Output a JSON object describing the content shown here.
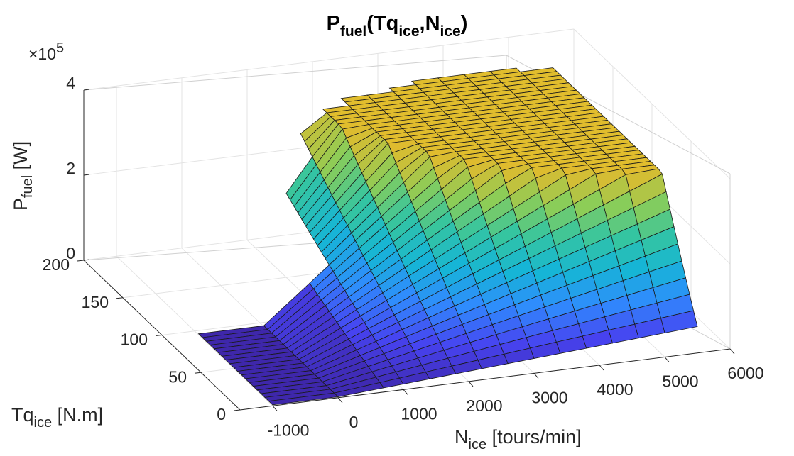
{
  "chart_data": {
    "type": "surface",
    "title": {
      "main": "P",
      "sub1": "fuel",
      "mid": "(Tq",
      "sub2": "ice",
      "mid2": ",N",
      "sub3": "ice",
      "end": ")"
    },
    "xlabel": {
      "main": "N",
      "sub": "ice",
      "rest": " [tours/min]"
    },
    "ylabel": {
      "main": "Tq",
      "sub": "ice",
      "rest": " [N.m]"
    },
    "zlabel": {
      "main": "P",
      "sub": "fuel",
      "rest": " [W]"
    },
    "z_exponent": {
      "base": "×10",
      "exp": "5"
    },
    "xlim": [
      -1500,
      6000
    ],
    "ylim": [
      0,
      200
    ],
    "zlim": [
      0,
      400000
    ],
    "x_ticks": [
      "-1000",
      "0",
      "1000",
      "2000",
      "3000",
      "4000",
      "5000",
      "6000"
    ],
    "y_ticks": [
      "0",
      "50",
      "100",
      "150",
      "200"
    ],
    "z_ticks": [
      "0",
      "2",
      "4"
    ],
    "colormap": [
      "#3e26a8",
      "#4743f0",
      "#2f8cfd",
      "#16b5d6",
      "#35c5a0",
      "#8bcd58",
      "#e0bb2e",
      "#f9fb14"
    ],
    "grid": true,
    "surface": {
      "speed_breakpoints_rpm": [
        -1000,
        0,
        700,
        1000,
        1400,
        1800,
        2200,
        2600,
        3000,
        3400,
        3800,
        4200,
        4600,
        5000,
        5500
      ],
      "speed_max_rpm": 5500,
      "torque_levels": [
        0,
        5,
        10,
        15,
        20,
        25,
        30,
        35,
        40,
        45,
        50,
        55,
        60,
        65,
        70,
        75,
        80,
        85,
        90,
        95,
        100,
        105,
        110,
        115,
        120,
        125,
        130,
        135,
        140,
        145,
        150,
        155,
        160,
        165,
        170,
        175,
        180,
        185,
        190,
        195,
        200
      ],
      "max_torque_by_speed": [
        95,
        95,
        95,
        150,
        165,
        172,
        178,
        182,
        187,
        190,
        192,
        192,
        195,
        190,
        185
      ],
      "fuel_power_model_W": "P = 240*N*(0.06 + Tq/195)^1.1 + 2200, capped at 3.45e5"
    }
  }
}
